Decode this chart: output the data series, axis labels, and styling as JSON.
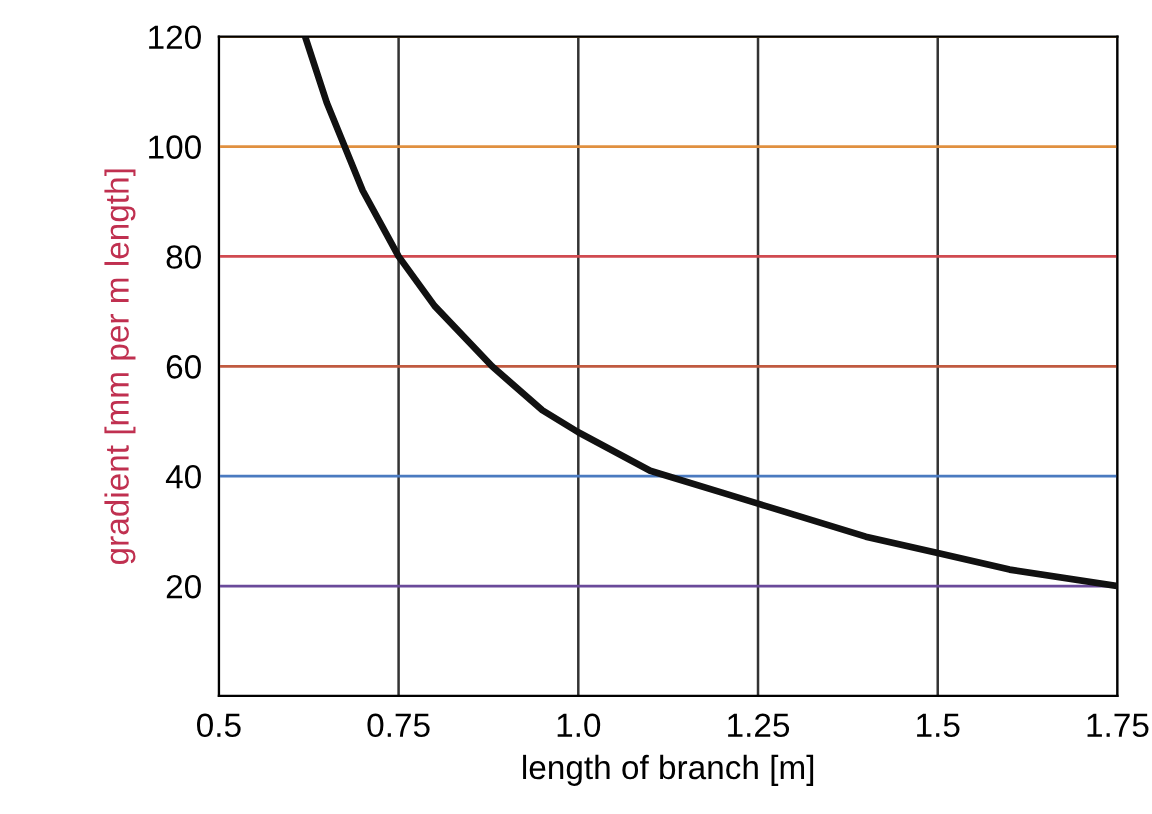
{
  "chart_data": {
    "type": "line",
    "xlabel": "length of branch [m]",
    "ylabel": "gradient [mm per m length]",
    "series": [
      {
        "color": "#111111",
        "x": [
          0.62,
          0.65,
          0.7,
          0.75,
          0.8,
          0.88,
          0.95,
          1.0,
          1.1,
          1.2,
          1.25,
          1.3,
          1.4,
          1.5,
          1.6,
          1.75
        ],
        "values": [
          120,
          108,
          92,
          80,
          71,
          60,
          52,
          48,
          41,
          37,
          35,
          33,
          29,
          26,
          23,
          20
        ]
      }
    ],
    "xlim": [
      0.5,
      1.75
    ],
    "ylim": [
      0,
      120
    ],
    "xticks": [
      0.5,
      0.75,
      {
        "value": 1.0,
        "label": "1.0"
      },
      1.25,
      1.5,
      1.75
    ],
    "yticks": [
      20,
      40,
      60,
      80,
      100,
      120
    ],
    "grid": "x",
    "marker": "none",
    "line_style": "solid",
    "legend": false,
    "ref_lines": [
      {
        "axis": "y",
        "value": 20,
        "color": "#6a4a9a"
      },
      {
        "axis": "y",
        "value": 40,
        "color": "#4a7ac0"
      },
      {
        "axis": "y",
        "value": 60,
        "color": "#c05a40"
      },
      {
        "axis": "y",
        "value": 80,
        "color": "#d04a50"
      },
      {
        "axis": "y",
        "value": 100,
        "color": "#e09040"
      },
      {
        "axis": "y",
        "value": 120,
        "color": "#e0a050"
      }
    ]
  }
}
